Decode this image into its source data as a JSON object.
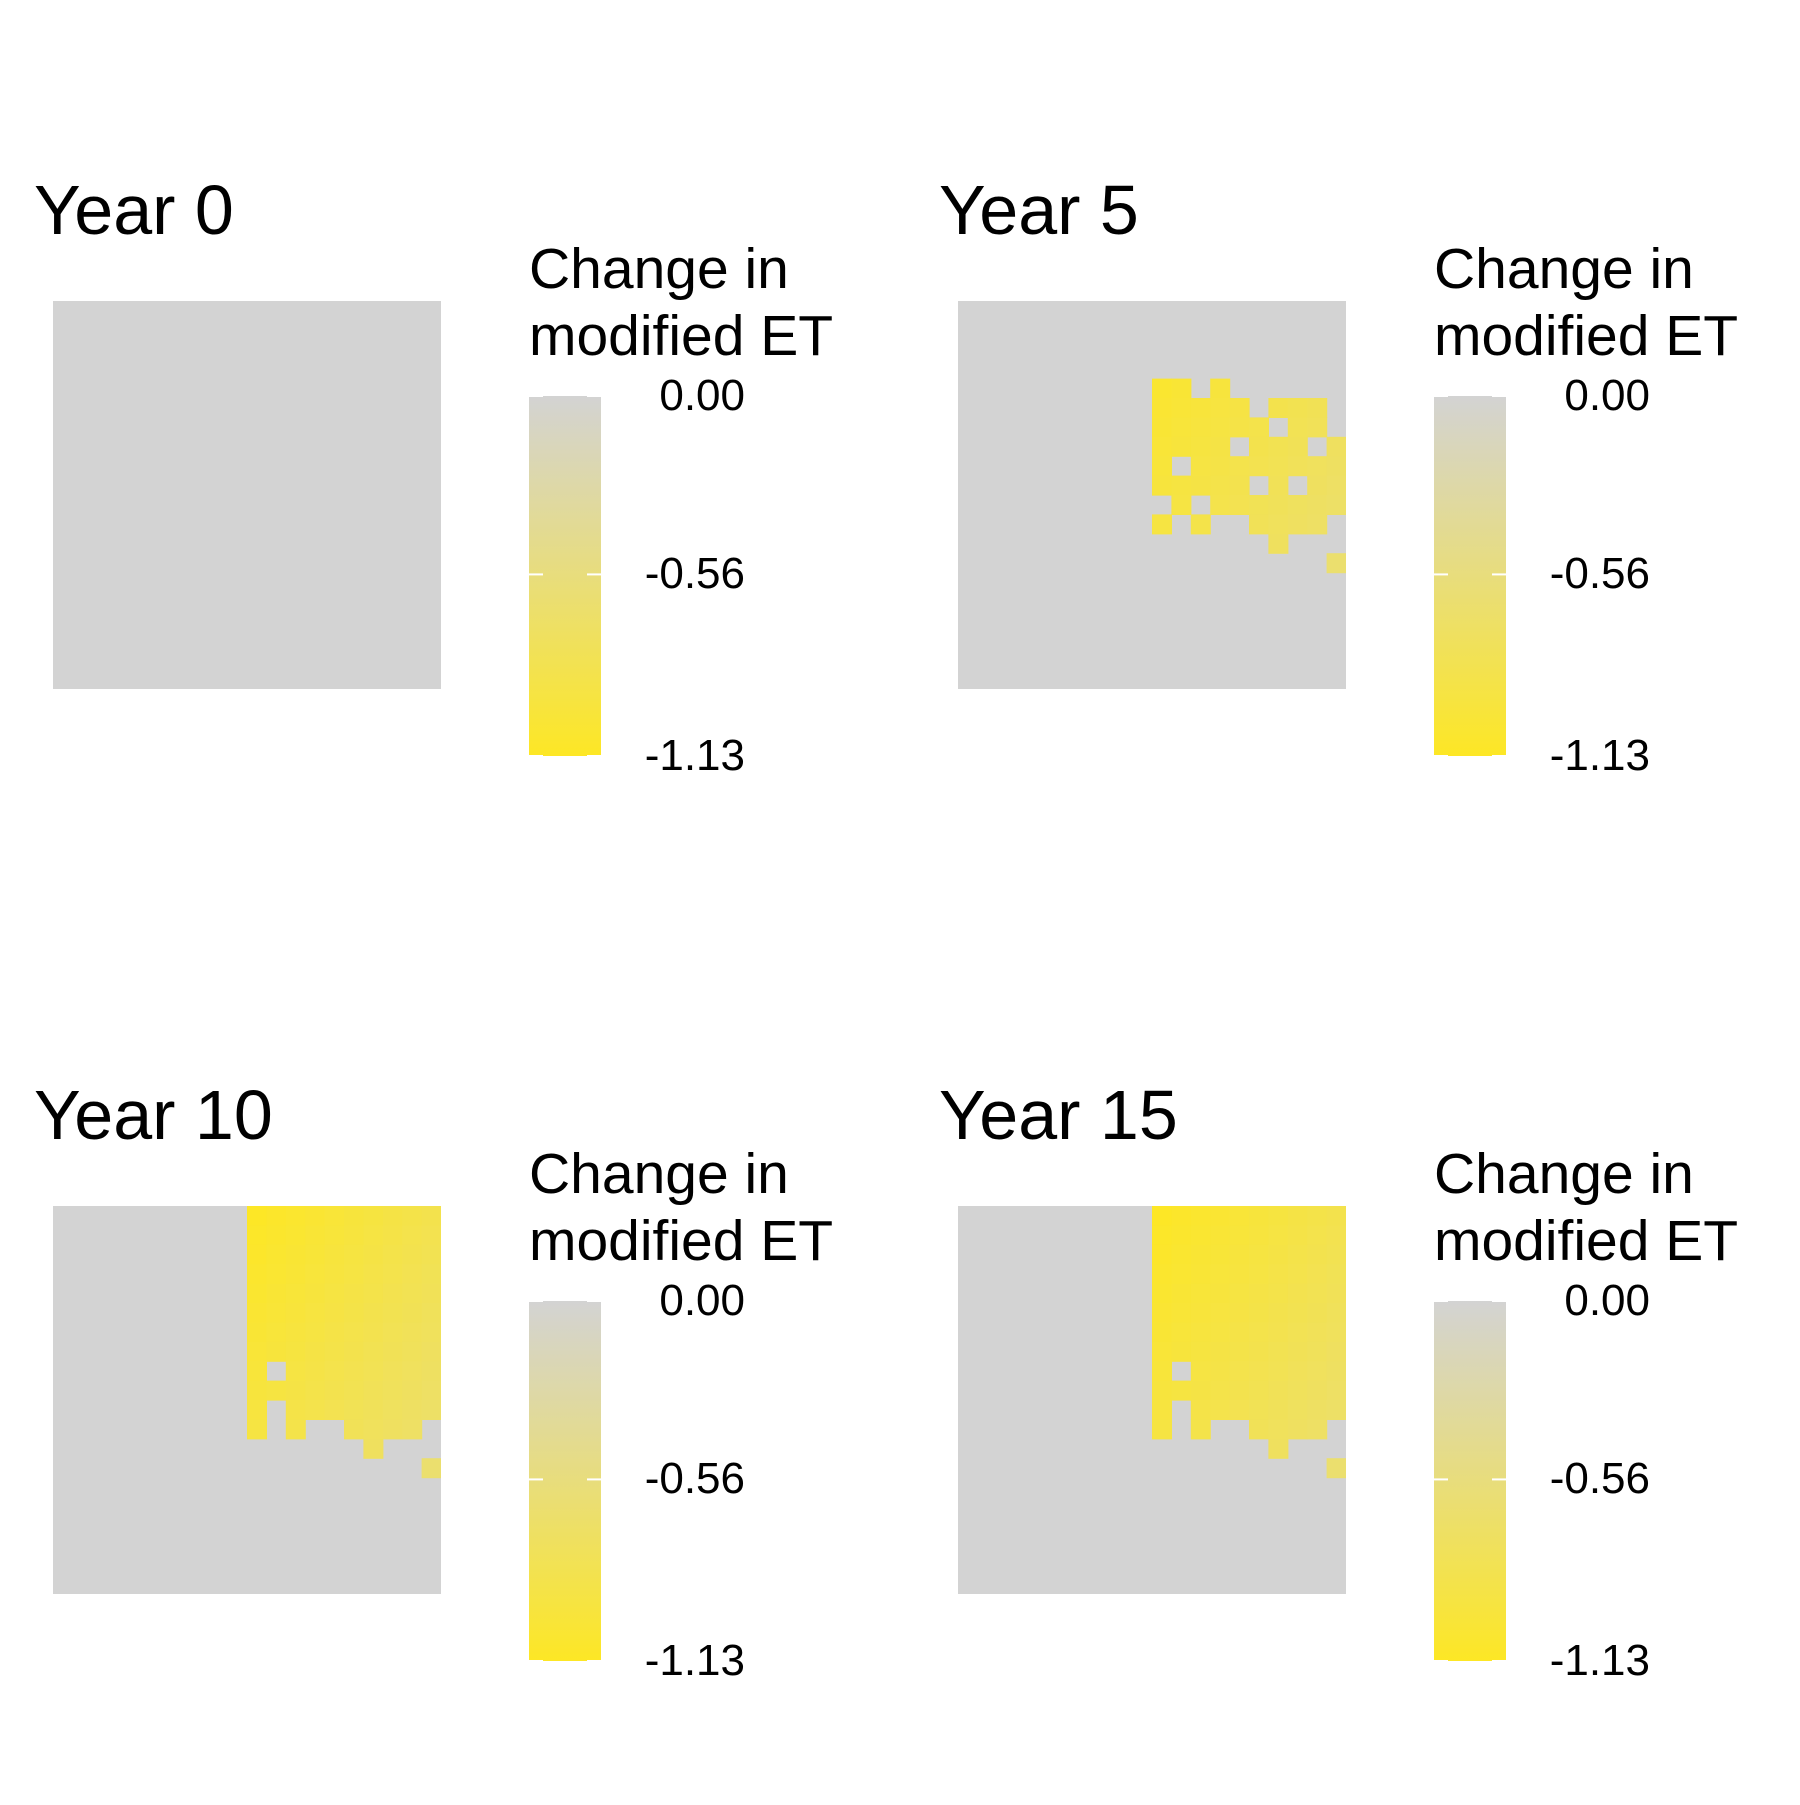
{
  "colors": {
    "zero": "#d3d3d3",
    "max": "#fde725"
  },
  "legend_template": {
    "title_line1": "Change in",
    "title_line2": "modified ET",
    "ticks": [
      "0.00",
      "-0.56",
      "-1.13"
    ]
  },
  "chart_data": [
    {
      "type": "heatmap",
      "title": "Year 0",
      "legend": {
        "title": "Change in modified ET",
        "min": -1.13,
        "max": 0.0,
        "ticks": [
          0.0,
          -0.56,
          -1.13
        ]
      },
      "grid_size": [
        20,
        20
      ],
      "affected_cells": []
    },
    {
      "type": "heatmap",
      "title": "Year 5",
      "legend": {
        "title": "Change in modified ET",
        "min": -1.13,
        "max": 0.0,
        "ticks": [
          0.0,
          -0.56,
          -1.13
        ]
      },
      "grid_size": [
        20,
        20
      ],
      "affected_cells": [
        [
          4,
          10
        ],
        [
          4,
          11
        ],
        [
          4,
          13
        ],
        [
          5,
          10
        ],
        [
          5,
          11
        ],
        [
          5,
          12
        ],
        [
          5,
          13
        ],
        [
          5,
          14
        ],
        [
          5,
          16
        ],
        [
          5,
          17
        ],
        [
          5,
          18
        ],
        [
          6,
          10
        ],
        [
          6,
          11
        ],
        [
          6,
          12
        ],
        [
          6,
          13
        ],
        [
          6,
          14
        ],
        [
          6,
          15
        ],
        [
          6,
          17
        ],
        [
          6,
          18
        ],
        [
          7,
          10
        ],
        [
          7,
          11
        ],
        [
          7,
          12
        ],
        [
          7,
          13
        ],
        [
          7,
          15
        ],
        [
          7,
          16
        ],
        [
          7,
          17
        ],
        [
          7,
          19
        ],
        [
          8,
          10
        ],
        [
          8,
          12
        ],
        [
          8,
          13
        ],
        [
          8,
          14
        ],
        [
          8,
          15
        ],
        [
          8,
          16
        ],
        [
          8,
          17
        ],
        [
          8,
          18
        ],
        [
          8,
          19
        ],
        [
          9,
          10
        ],
        [
          9,
          11
        ],
        [
          9,
          12
        ],
        [
          9,
          13
        ],
        [
          9,
          14
        ],
        [
          9,
          16
        ],
        [
          9,
          18
        ],
        [
          9,
          19
        ],
        [
          10,
          11
        ],
        [
          10,
          13
        ],
        [
          10,
          14
        ],
        [
          10,
          15
        ],
        [
          10,
          16
        ],
        [
          10,
          17
        ],
        [
          10,
          18
        ],
        [
          10,
          19
        ],
        [
          11,
          10
        ],
        [
          11,
          12
        ],
        [
          11,
          15
        ],
        [
          11,
          16
        ],
        [
          11,
          17
        ],
        [
          11,
          18
        ],
        [
          12,
          16
        ],
        [
          13,
          19
        ]
      ]
    },
    {
      "type": "heatmap",
      "title": "Year 10",
      "legend": {
        "title": "Change in modified ET",
        "min": -1.13,
        "max": 0.0,
        "ticks": [
          0.0,
          -0.56,
          -1.13
        ]
      },
      "grid_size": [
        20,
        20
      ],
      "affected_region": {
        "col_start": 10,
        "col_end": 19,
        "row_start": 0,
        "row_end": 9
      },
      "extra_cells": [
        [
          10,
          10
        ],
        [
          10,
          12
        ],
        [
          10,
          13
        ],
        [
          10,
          14
        ],
        [
          10,
          15
        ],
        [
          10,
          16
        ],
        [
          10,
          17
        ],
        [
          10,
          18
        ],
        [
          10,
          19
        ],
        [
          11,
          10
        ],
        [
          11,
          12
        ],
        [
          11,
          15
        ],
        [
          11,
          16
        ],
        [
          11,
          17
        ],
        [
          11,
          18
        ],
        [
          12,
          16
        ],
        [
          13,
          19
        ]
      ],
      "missing_cells": [
        [
          8,
          11
        ]
      ]
    },
    {
      "type": "heatmap",
      "title": "Year 15",
      "legend": {
        "title": "Change in modified ET",
        "min": -1.13,
        "max": 0.0,
        "ticks": [
          0.0,
          -0.56,
          -1.13
        ]
      },
      "grid_size": [
        20,
        20
      ],
      "affected_region": {
        "col_start": 10,
        "col_end": 19,
        "row_start": 0,
        "row_end": 9
      },
      "extra_cells": [
        [
          10,
          10
        ],
        [
          10,
          12
        ],
        [
          10,
          13
        ],
        [
          10,
          14
        ],
        [
          10,
          15
        ],
        [
          10,
          16
        ],
        [
          10,
          17
        ],
        [
          10,
          18
        ],
        [
          10,
          19
        ],
        [
          11,
          10
        ],
        [
          11,
          12
        ],
        [
          11,
          15
        ],
        [
          11,
          16
        ],
        [
          11,
          17
        ],
        [
          11,
          18
        ],
        [
          12,
          16
        ],
        [
          13,
          19
        ]
      ],
      "missing_cells": [
        [
          8,
          11
        ]
      ]
    }
  ]
}
